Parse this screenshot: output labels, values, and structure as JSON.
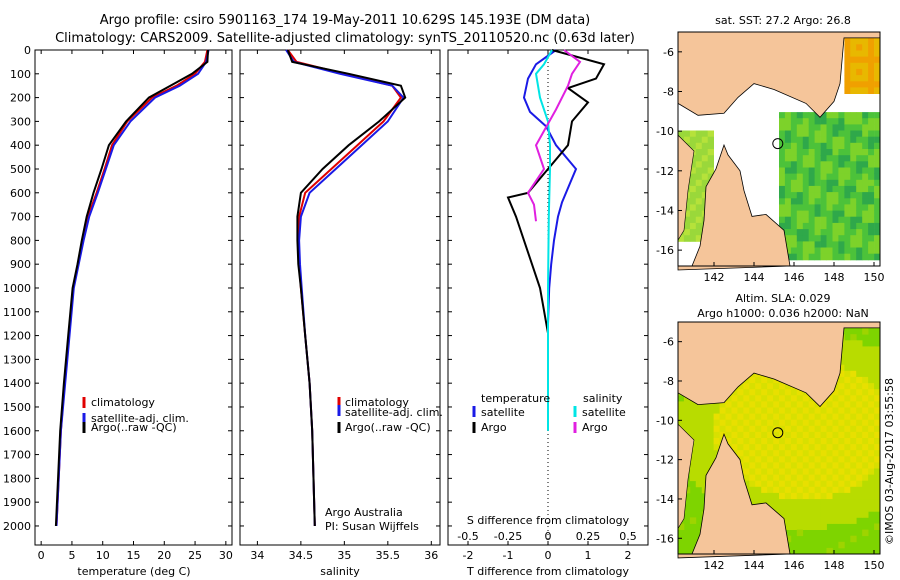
{
  "title": {
    "line1": "Argo profile: csiro 5901163_174 19-May-2011 10.629S 145.193E (DM data)",
    "line2": "Climatology: CARS2009. Satellite-adjusted climatology: synTS_20110520.nc (0.63d later)"
  },
  "colors": {
    "climatology": "#e00000",
    "satellite": "#1a1ae6",
    "argo": "#000000",
    "salinity_sat": "#00e5e5",
    "salinity_argo": "#e020e0",
    "land": "#f5c59a"
  },
  "chart_data": [
    {
      "type": "line",
      "name": "temperature-profile",
      "xlabel": "temperature (deg C)",
      "ylabel": "",
      "xlim": [
        -1,
        31
      ],
      "ylim": [
        2080,
        0
      ],
      "xticks": [
        0,
        5,
        10,
        15,
        20,
        25,
        30
      ],
      "yticks": [
        0,
        100,
        200,
        300,
        400,
        500,
        600,
        700,
        800,
        900,
        1000,
        1100,
        1200,
        1300,
        1400,
        1500,
        1600,
        1700,
        1800,
        1900,
        2000
      ],
      "legend": [
        "climatology",
        "satellite-adj. clim.",
        "Argo(..raw -QC)"
      ],
      "series": [
        {
          "name": "climatology",
          "color": "#e00000",
          "x": [
            27.0,
            26.6,
            25.0,
            22.0,
            18.0,
            14.0,
            11.5,
            10.3,
            9.0,
            7.6,
            6.8,
            6.0,
            5.2,
            4.5,
            3.8,
            3.2,
            2.5
          ],
          "y": [
            0,
            50,
            100,
            150,
            200,
            300,
            400,
            500,
            600,
            700,
            800,
            900,
            1000,
            1200,
            1400,
            1600,
            2000
          ]
        },
        {
          "name": "satellite-adj. clim.",
          "color": "#1a1ae6",
          "x": [
            27.2,
            26.8,
            25.5,
            22.5,
            18.5,
            14.5,
            11.8,
            10.5,
            9.2,
            7.8,
            6.9,
            6.1,
            5.3,
            4.6,
            3.9,
            3.2,
            2.5
          ],
          "y": [
            0,
            50,
            100,
            150,
            200,
            300,
            400,
            500,
            600,
            700,
            800,
            900,
            1000,
            1200,
            1400,
            1600,
            2000
          ]
        },
        {
          "name": "Argo(..raw -QC)",
          "color": "#000000",
          "x": [
            27.1,
            27.0,
            24.5,
            21.0,
            17.5,
            13.8,
            11.0,
            9.8,
            8.5,
            7.4,
            6.6,
            5.9,
            5.1,
            4.4,
            3.7,
            3.1,
            2.4
          ],
          "y": [
            0,
            50,
            100,
            150,
            200,
            300,
            400,
            500,
            600,
            700,
            800,
            900,
            1000,
            1200,
            1400,
            1600,
            2000
          ]
        }
      ]
    },
    {
      "type": "line",
      "name": "salinity-profile",
      "xlabel": "salinity",
      "xlim": [
        33.8,
        36.1
      ],
      "ylim": [
        2080,
        0
      ],
      "xticks": [
        34,
        34.5,
        35,
        35.5,
        36
      ],
      "legend": [
        "climatology",
        "satellite-adj. clim.",
        "Argo(..raw -QC)"
      ],
      "annotation": [
        "Argo Australia",
        "PI: Susan Wijffels"
      ],
      "series": [
        {
          "name": "climatology",
          "color": "#e00000",
          "x": [
            34.35,
            34.45,
            35.0,
            35.55,
            35.65,
            35.45,
            35.15,
            34.85,
            34.55,
            34.48,
            34.47,
            34.48,
            34.5,
            34.55,
            34.6,
            34.63,
            34.66
          ],
          "y": [
            0,
            50,
            100,
            150,
            200,
            300,
            400,
            500,
            600,
            700,
            800,
            900,
            1000,
            1200,
            1400,
            1600,
            2000
          ]
        },
        {
          "name": "satellite-adj. clim.",
          "color": "#1a1ae6",
          "x": [
            34.33,
            34.42,
            34.95,
            35.55,
            35.68,
            35.5,
            35.2,
            34.9,
            34.6,
            34.5,
            34.48,
            34.49,
            34.51,
            34.55,
            34.6,
            34.63,
            34.66
          ],
          "y": [
            0,
            50,
            100,
            150,
            200,
            300,
            400,
            500,
            600,
            700,
            800,
            900,
            1000,
            1200,
            1400,
            1600,
            2000
          ]
        },
        {
          "name": "Argo(..raw -QC)",
          "color": "#000000",
          "x": [
            34.35,
            34.4,
            35.05,
            35.65,
            35.7,
            35.4,
            35.05,
            34.75,
            34.5,
            34.46,
            34.46,
            34.47,
            34.5,
            34.55,
            34.6,
            34.63,
            34.66
          ],
          "y": [
            0,
            50,
            100,
            150,
            200,
            300,
            400,
            500,
            600,
            700,
            800,
            900,
            1000,
            1200,
            1400,
            1600,
            2000
          ]
        }
      ]
    },
    {
      "type": "line",
      "name": "difference-profile",
      "xlabel_top": "S difference from climatology",
      "xlabel": "T difference from climatology",
      "xlim": [
        -2.5,
        2.5
      ],
      "ylim": [
        2080,
        0
      ],
      "xticks_T": [
        -2,
        -1,
        0,
        1,
        2
      ],
      "xticks_S": [
        "-0.5",
        "-0.25",
        "0",
        "0.25",
        "0.5"
      ],
      "xticks_S_pos": [
        -2,
        -1,
        0,
        1,
        2
      ],
      "legend_headers": [
        "temperature",
        "salinity"
      ],
      "legend": [
        "satellite",
        "Argo",
        "satellite",
        "Argo"
      ],
      "series": [
        {
          "name": "temperature satellite",
          "color": "#1a1ae6",
          "x": [
            0.2,
            -0.3,
            -0.5,
            -0.6,
            -0.45,
            -0.05,
            0.2,
            0.7,
            0.55,
            0.35,
            0.25,
            0.15,
            0.08,
            0.03,
            0.0
          ],
          "y": [
            0,
            60,
            120,
            200,
            260,
            320,
            400,
            500,
            560,
            640,
            700,
            800,
            900,
            1000,
            1150
          ]
        },
        {
          "name": "temperature Argo",
          "color": "#000000",
          "x": [
            0.1,
            1.4,
            1.2,
            0.5,
            1.0,
            0.6,
            0.5,
            0.0,
            -0.5,
            -1.0,
            -0.8,
            -0.6,
            -0.4,
            -0.2,
            0.0
          ],
          "y": [
            0,
            60,
            120,
            160,
            220,
            300,
            400,
            500,
            600,
            620,
            700,
            800,
            900,
            1000,
            1190
          ]
        },
        {
          "name": "salinity satellite",
          "color": "#00e5e5",
          "x": [
            0.1,
            -0.1,
            -0.3,
            -0.2,
            0.0,
            0.05,
            0.05,
            0.02,
            0.0,
            0.0
          ],
          "y": [
            0,
            60,
            100,
            200,
            300,
            400,
            500,
            700,
            1000,
            1600
          ]
        },
        {
          "name": "salinity Argo",
          "color": "#e020e0",
          "x": [
            0.4,
            0.8,
            0.6,
            0.5,
            0.2,
            -0.3,
            -0.1,
            -0.5,
            -0.35,
            -0.3
          ],
          "y": [
            0,
            50,
            100,
            150,
            250,
            400,
            500,
            600,
            650,
            720
          ]
        }
      ]
    },
    {
      "type": "heatmap",
      "name": "sst-map",
      "title": "sat. SST: 27.2  Argo: 26.8",
      "xticks": [
        142,
        144,
        146,
        148,
        150
      ],
      "yticks": [
        -6,
        -8,
        -10,
        -12,
        -14,
        -16
      ],
      "xlim": [
        140.2,
        150.3
      ],
      "ylim": [
        -16.8,
        -5.0
      ],
      "marker": {
        "lon": 145.19,
        "lat": -10.63
      }
    },
    {
      "type": "heatmap",
      "name": "sla-map",
      "title_line1": "Altim. SLA: 0.029",
      "title_line2": "Argo h1000: 0.036 h2000: NaN",
      "xticks": [
        142,
        144,
        146,
        148,
        150
      ],
      "yticks": [
        -6,
        -8,
        -10,
        -12,
        -14,
        -16
      ],
      "xlim": [
        140.2,
        150.3
      ],
      "ylim": [
        -16.8,
        -5.0
      ],
      "marker": {
        "lon": 145.19,
        "lat": -10.63
      }
    }
  ],
  "watermark": "©IMOS 03-Aug-2017 03:55:58"
}
